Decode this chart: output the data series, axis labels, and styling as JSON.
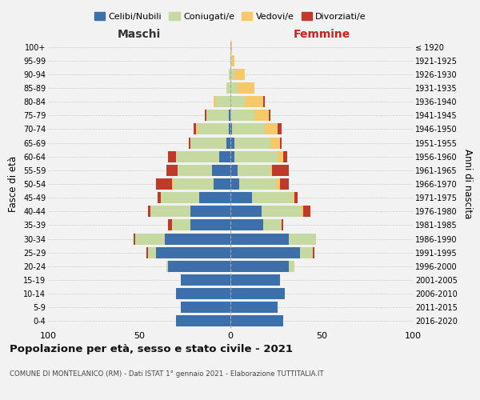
{
  "age_groups": [
    "0-4",
    "5-9",
    "10-14",
    "15-19",
    "20-24",
    "25-29",
    "30-34",
    "35-39",
    "40-44",
    "45-49",
    "50-54",
    "55-59",
    "60-64",
    "65-69",
    "70-74",
    "75-79",
    "80-84",
    "85-89",
    "90-94",
    "95-99",
    "100+"
  ],
  "birth_years": [
    "2016-2020",
    "2011-2015",
    "2006-2010",
    "2001-2005",
    "1996-2000",
    "1991-1995",
    "1986-1990",
    "1981-1985",
    "1976-1980",
    "1971-1975",
    "1966-1970",
    "1961-1965",
    "1956-1960",
    "1951-1955",
    "1946-1950",
    "1941-1945",
    "1936-1940",
    "1931-1935",
    "1926-1930",
    "1921-1925",
    "≤ 1920"
  ],
  "colors": {
    "celibe": "#3d6faa",
    "coniugato": "#c5d9a0",
    "vedovo": "#f5c96a",
    "divorziato": "#c0392b"
  },
  "maschi": {
    "celibe": [
      30,
      27,
      30,
      27,
      34,
      41,
      36,
      22,
      22,
      17,
      9,
      10,
      6,
      2,
      1,
      1,
      0,
      0,
      0,
      0,
      0
    ],
    "coniugato": [
      0,
      0,
      0,
      0,
      1,
      4,
      16,
      10,
      22,
      21,
      22,
      19,
      24,
      20,
      17,
      12,
      8,
      2,
      1,
      0,
      0
    ],
    "vedovo": [
      0,
      0,
      0,
      0,
      0,
      0,
      0,
      0,
      0,
      0,
      1,
      0,
      0,
      0,
      1,
      0,
      1,
      0,
      0,
      0,
      0
    ],
    "divorziato": [
      0,
      0,
      0,
      0,
      0,
      1,
      1,
      2,
      1,
      2,
      9,
      6,
      4,
      1,
      1,
      1,
      0,
      0,
      0,
      0,
      0
    ]
  },
  "femmine": {
    "nubile": [
      29,
      26,
      30,
      27,
      32,
      38,
      32,
      18,
      17,
      12,
      5,
      4,
      2,
      2,
      1,
      0,
      0,
      0,
      0,
      0,
      0
    ],
    "coniugata": [
      0,
      0,
      0,
      0,
      3,
      7,
      15,
      10,
      22,
      22,
      20,
      18,
      24,
      20,
      18,
      13,
      8,
      4,
      2,
      1,
      0
    ],
    "vedova": [
      0,
      0,
      0,
      0,
      0,
      0,
      0,
      0,
      1,
      1,
      2,
      1,
      3,
      5,
      7,
      8,
      10,
      9,
      6,
      1,
      1
    ],
    "divorziata": [
      0,
      0,
      0,
      0,
      0,
      1,
      0,
      1,
      4,
      2,
      5,
      9,
      2,
      1,
      2,
      1,
      1,
      0,
      0,
      0,
      0
    ]
  },
  "xlim": 100,
  "title": "Popolazione per età, sesso e stato civile - 2021",
  "subtitle": "COMUNE DI MONTELANICO (RM) - Dati ISTAT 1° gennaio 2021 - Elaborazione TUTTITALIA.IT",
  "ylabel_left": "Fasce di età",
  "ylabel_right": "Anni di nascita",
  "xlabel_maschi": "Maschi",
  "xlabel_femmine": "Femmine",
  "legend_labels": [
    "Celibi/Nubili",
    "Coniugati/e",
    "Vedovi/e",
    "Divorziati/e"
  ],
  "background_color": "#f2f2f2",
  "maschi_label_color": "#333333",
  "femmine_label_color": "#cc2222"
}
